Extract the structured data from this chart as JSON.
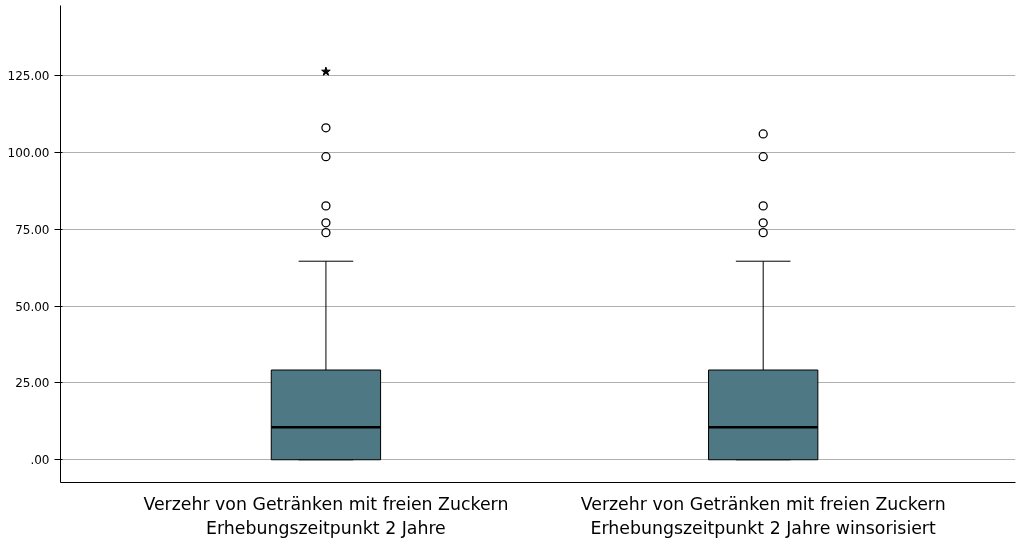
{
  "chart_data": {
    "type": "box",
    "categories": [
      "Verzehr von Getränken mit freien Zuckern\nErhebungszeitpunkt 2 Jahre",
      "Verzehr von Getränken mit freien Zuckern\nErhebungszeitpunkt 2 Jahre winsorisiert"
    ],
    "boxes": [
      {
        "low": 0,
        "q1": 0,
        "median": 10.6,
        "q3": 29.2,
        "high": 64.6,
        "outliers": [
          73.9,
          77.1,
          82.6,
          98.6,
          108.0,
          126.3
        ]
      },
      {
        "low": 0,
        "q1": 0,
        "median": 10.6,
        "q3": 29.2,
        "high": 64.6,
        "outliers": [
          73.9,
          77.1,
          82.6,
          98.6,
          106.0
        ]
      }
    ],
    "color": "#4f7885",
    "ylim": [
      -7.4,
      147.8
    ],
    "yticks": [
      {
        "value": 0,
        "label": ".00"
      },
      {
        "value": 25,
        "label": "25.00"
      },
      {
        "value": 50,
        "label": "50.00"
      },
      {
        "value": 75,
        "label": "75.00"
      },
      {
        "value": 100,
        "label": "100.00"
      },
      {
        "value": 125,
        "label": "125.00"
      }
    ],
    "grid": "y"
  }
}
